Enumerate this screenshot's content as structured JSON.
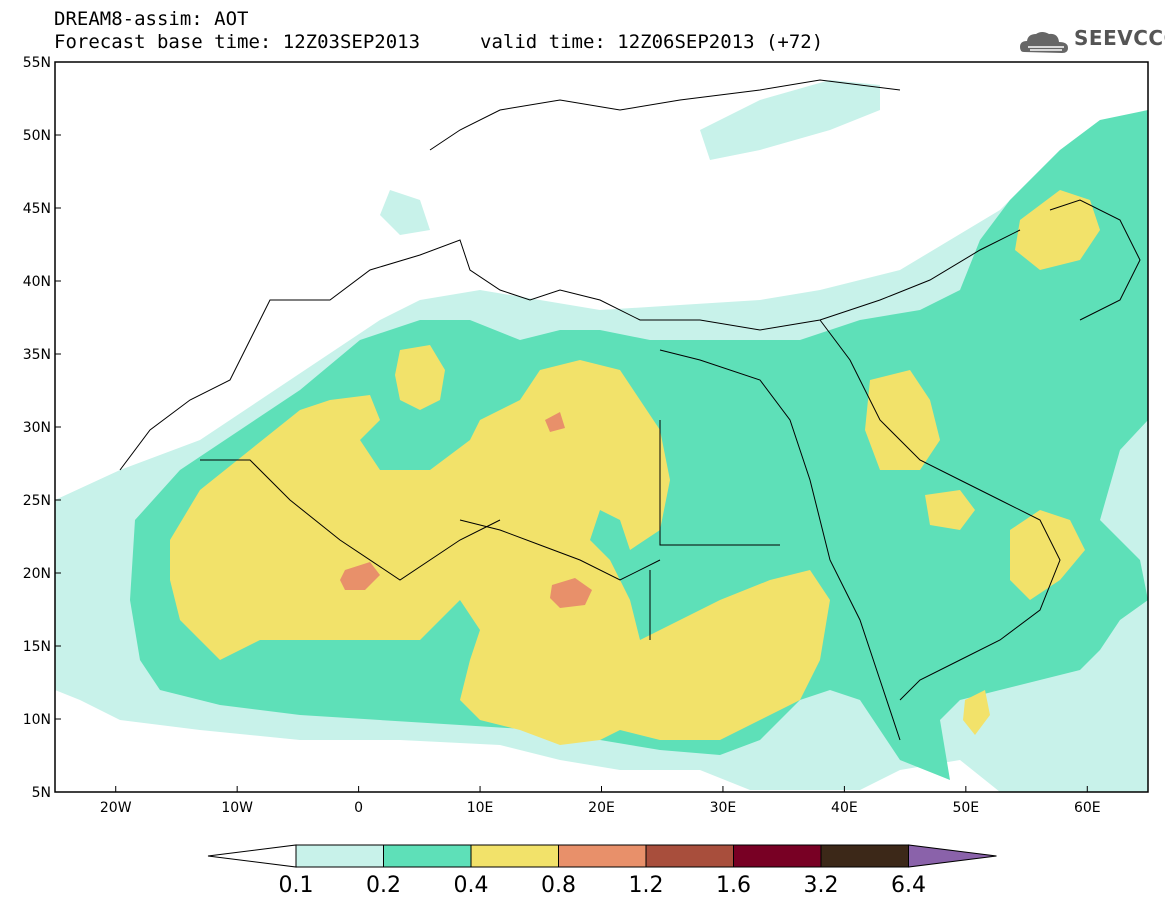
{
  "header": {
    "line1": "DREAM8-assim: AOT",
    "line2": "Forecast base time: 12Z03SEP2013",
    "valid": "valid time: 12Z06SEP2013 (+72)",
    "logo_text": "SEEVCCC"
  },
  "axes": {
    "x_ticks": [
      "20W",
      "10W",
      "0",
      "10E",
      "20E",
      "30E",
      "40E",
      "50E",
      "60E"
    ],
    "y_ticks": [
      "55N",
      "50N",
      "45N",
      "40N",
      "35N",
      "30N",
      "25N",
      "20N",
      "15N",
      "10N",
      "5N"
    ],
    "lon_range": [
      -25,
      65
    ],
    "lat_range": [
      5,
      55
    ]
  },
  "colorbar": {
    "levels": [
      "0.1",
      "0.2",
      "0.4",
      "0.8",
      "1.2",
      "1.6",
      "3.2",
      "6.4"
    ],
    "colors": [
      "#c8f2ea",
      "#5ee0b8",
      "#f2e26a",
      "#e8906a",
      "#a84e3c",
      "#780024",
      "#3c2818",
      "#8a62aa"
    ]
  },
  "colors": {
    "c01": "#c8f2ea",
    "c02": "#5ee0b8",
    "c04": "#f2e26a",
    "c08": "#e8906a"
  }
}
